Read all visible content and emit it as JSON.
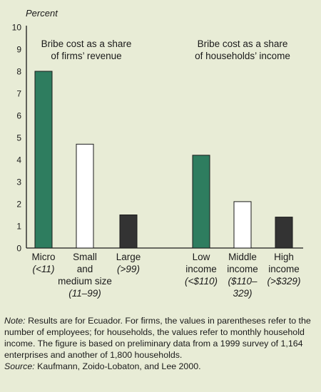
{
  "chart_data": {
    "type": "bar",
    "ylabel": "Percent",
    "ylim": [
      0,
      10
    ],
    "yticks": [
      0,
      1,
      2,
      3,
      4,
      5,
      6,
      7,
      8,
      9,
      10
    ],
    "colors": {
      "green": "#2e7d5f",
      "white": "#ffffff",
      "dark": "#333333",
      "axis": "#1a1a1a"
    },
    "groups": [
      {
        "title_lines": [
          "Bribe cost as a share",
          "of firms’ revenue"
        ],
        "bars": [
          {
            "value": 8.0,
            "color": "green",
            "label_lines": [
              [
                "Micro"
              ],
              [
                "(<11)"
              ]
            ]
          },
          {
            "value": 4.7,
            "color": "white",
            "label_lines": [
              [
                "Small"
              ],
              [
                "and"
              ],
              [
                "medium size"
              ],
              [
                "(11–99)"
              ]
            ]
          },
          {
            "value": 1.5,
            "color": "dark",
            "label_lines": [
              [
                "Large"
              ],
              [
                "(>99)"
              ]
            ]
          }
        ]
      },
      {
        "title_lines": [
          "Bribe cost as a share",
          "of households’ income"
        ],
        "bars": [
          {
            "value": 4.2,
            "color": "green",
            "label_lines": [
              [
                "Low"
              ],
              [
                "income"
              ],
              [
                "(<$110)"
              ]
            ]
          },
          {
            "value": 2.1,
            "color": "white",
            "label_lines": [
              [
                "Middle"
              ],
              [
                "income"
              ],
              [
                "($110–"
              ],
              [
                "329)"
              ]
            ]
          },
          {
            "value": 1.4,
            "color": "dark",
            "label_lines": [
              [
                "High"
              ],
              [
                "income"
              ],
              [
                "(>$329)"
              ]
            ]
          }
        ]
      }
    ]
  },
  "notes": {
    "note_lead": "Note:",
    "note_text": " Results are for Ecuador. For firms, the values in parentheses refer to the number of employees; for households, the values refer to monthly household income. The figure is based on preliminary data from a 1999 survey of 1,164 enterprises and another of 1,800 households.",
    "source_lead": "Source:",
    "source_text": " Kaufmann, Zoido-Lobaton, and Lee 2000."
  }
}
